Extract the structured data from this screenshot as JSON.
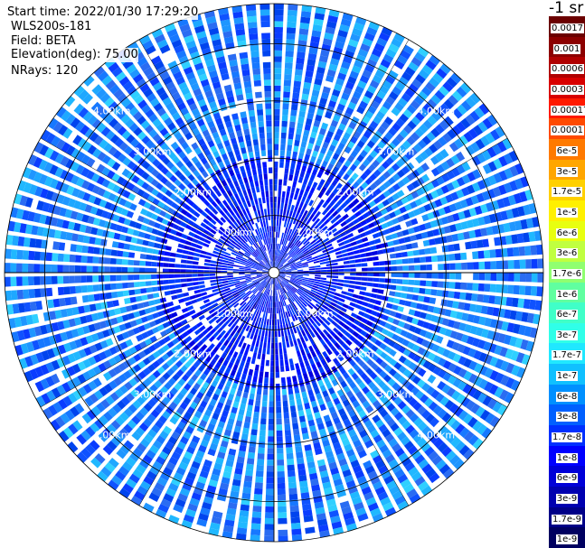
{
  "info": {
    "start_time": "Start time: 2022/01/30 17:29:20",
    "instrument": "WLS200s-181",
    "field": "Field: BETA",
    "elevation": "Elevation(deg): 75.00",
    "nrays": "NRays: 120"
  },
  "colorbar": {
    "unit": "-1 sr",
    "tick_labels": [
      "0.0017",
      "0.001",
      "0.0006",
      "0.0003",
      "0.00017",
      "0.0001",
      "6e-5",
      "3e-5",
      "1.7e-5",
      "1e-5",
      "6e-6",
      "3e-6",
      "1.7e-6",
      "1e-6",
      "6e-7",
      "3e-7",
      "1.7e-7",
      "1e-7",
      "6e-8",
      "3e-8",
      "1.7e-8",
      "1e-8",
      "6e-9",
      "3e-9",
      "1.7e-9",
      "1e-9"
    ],
    "colors": [
      "#6b0000",
      "#8c0000",
      "#b00000",
      "#d80000",
      "#ff1a00",
      "#ff4a00",
      "#ff7a00",
      "#ffa600",
      "#ffd000",
      "#fff000",
      "#e8ff10",
      "#c0ff40",
      "#90ff70",
      "#60ffa0",
      "#40ffc8",
      "#30ffe8",
      "#20e8ff",
      "#10c0ff",
      "#0090ff",
      "#0060ff",
      "#0030ff",
      "#0000ff",
      "#0000d8",
      "#0000b0",
      "#000088",
      "#000060"
    ]
  },
  "chart_data": {
    "type": "heatmap",
    "projection": "polar",
    "field": "BETA",
    "elevation_deg": 75.0,
    "n_rays": 120,
    "range_rings_km": [
      1.0,
      2.0,
      3.0,
      4.0
    ],
    "ring_labels": [
      "1.00km",
      "2.00km",
      "3.00km",
      "4.00km"
    ],
    "max_range_km": 4.7,
    "n_range_gates": 46,
    "value_range": [
      1e-09,
      0.0017
    ],
    "color_scale": "log",
    "dominant_values": [
      "3e-8",
      "6e-8",
      "1e-8"
    ],
    "near_range_values": [
      "1e-8",
      "3e-9"
    ]
  }
}
